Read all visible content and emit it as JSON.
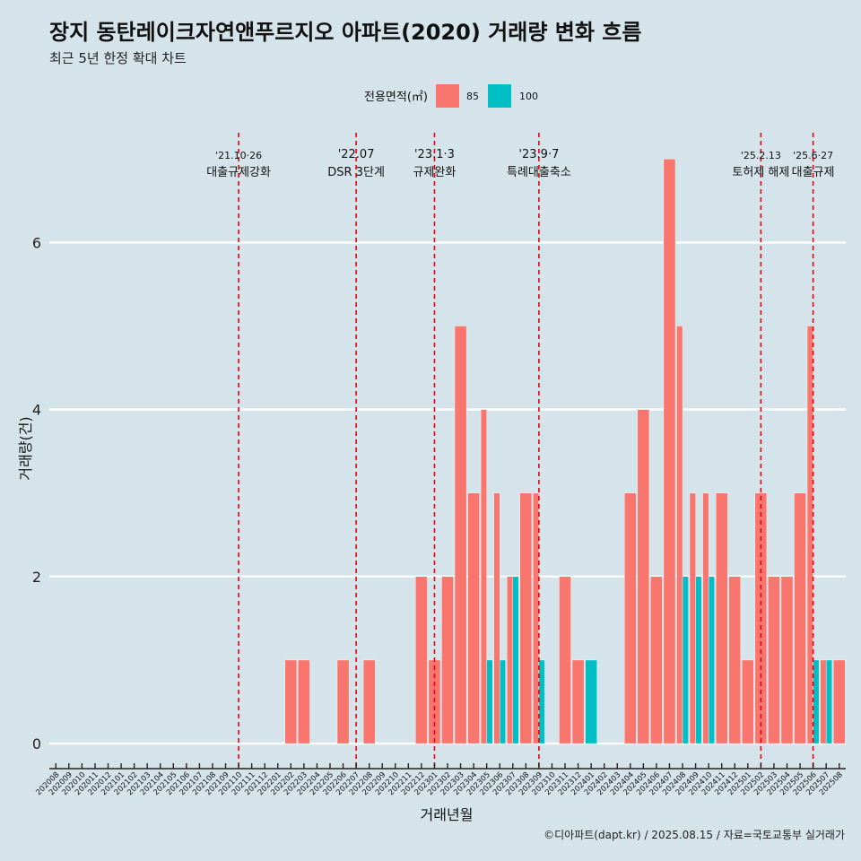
{
  "header": {
    "title": "장지 동탄레이크자연앤푸르지오 아파트(2020) 거래량 변화 흐름",
    "subtitle": "최근 5년 한정 확대 차트"
  },
  "footer": {
    "caption": "©디아파트(dapt.kr) / 2025.08.15 / 자료=국토교통부 실거래가"
  },
  "colors": {
    "s85": "#f8766d",
    "s100": "#00bfc4",
    "vline": "#e8000b",
    "background": "#d5e4eb",
    "grid": "#ffffff"
  },
  "chart_data": {
    "type": "bar",
    "xlabel": "거래년월",
    "ylabel": "거래량(건)",
    "ylim": [
      -0.3,
      7.4
    ],
    "yticks": [
      0,
      2,
      4,
      6
    ],
    "legend": {
      "title": "전용면적(㎡)",
      "placement": "top"
    },
    "categories": [
      "202008",
      "202009",
      "202010",
      "202011",
      "202012",
      "202101",
      "202102",
      "202103",
      "202104",
      "202105",
      "202106",
      "202107",
      "202108",
      "202109",
      "202110",
      "202111",
      "202112",
      "202201",
      "202202",
      "202203",
      "202204",
      "202205",
      "202206",
      "202207",
      "202208",
      "202209",
      "202210",
      "202211",
      "202212",
      "202301",
      "202302",
      "202303",
      "202304",
      "202305",
      "202306",
      "202307",
      "202308",
      "202309",
      "202310",
      "202311",
      "202312",
      "202401",
      "202402",
      "202403",
      "202404",
      "202405",
      "202406",
      "202407",
      "202408",
      "202409",
      "202410",
      "202411",
      "202412",
      "202501",
      "202502",
      "202503",
      "202504",
      "202505",
      "202506",
      "202507",
      "202508"
    ],
    "series": [
      {
        "name": "85",
        "values": [
          0,
          0,
          0,
          0,
          0,
          0,
          0,
          0,
          0,
          0,
          0,
          0,
          0,
          0,
          0,
          0,
          0,
          0,
          1,
          1,
          0,
          0,
          1,
          0,
          1,
          0,
          0,
          0,
          2,
          1,
          2,
          5,
          3,
          4,
          3,
          2,
          3,
          3,
          0,
          2,
          1,
          0,
          0,
          0,
          3,
          4,
          2,
          7,
          5,
          3,
          3,
          3,
          2,
          1,
          3,
          2,
          2,
          3,
          5,
          1,
          1
        ]
      },
      {
        "name": "100",
        "values": [
          0,
          0,
          0,
          0,
          0,
          0,
          0,
          0,
          0,
          0,
          0,
          0,
          0,
          0,
          0,
          0,
          0,
          0,
          0,
          0,
          0,
          0,
          0,
          0,
          0,
          0,
          0,
          0,
          0,
          0,
          0,
          0,
          0,
          1,
          1,
          2,
          0,
          1,
          0,
          0,
          0,
          1,
          0,
          0,
          0,
          0,
          0,
          0,
          2,
          2,
          2,
          0,
          0,
          0,
          0,
          0,
          0,
          0,
          1,
          1,
          0
        ]
      }
    ],
    "events": [
      {
        "date_label": "'21.10·26",
        "text": "대출규제강화",
        "x": "202110"
      },
      {
        "date_label": "'22.07",
        "text": "DSR 3단계",
        "x": "202207"
      },
      {
        "date_label": "'23.1·3",
        "text": "규제완화",
        "x": "202301"
      },
      {
        "date_label": "'23.9·7",
        "text": "특례대출축소",
        "x": "202309"
      },
      {
        "date_label": "'25.2.13",
        "text": "토허제 해제",
        "x": "202502"
      },
      {
        "date_label": "'25.6·27",
        "text": "대출규제",
        "x": "202506"
      }
    ]
  }
}
